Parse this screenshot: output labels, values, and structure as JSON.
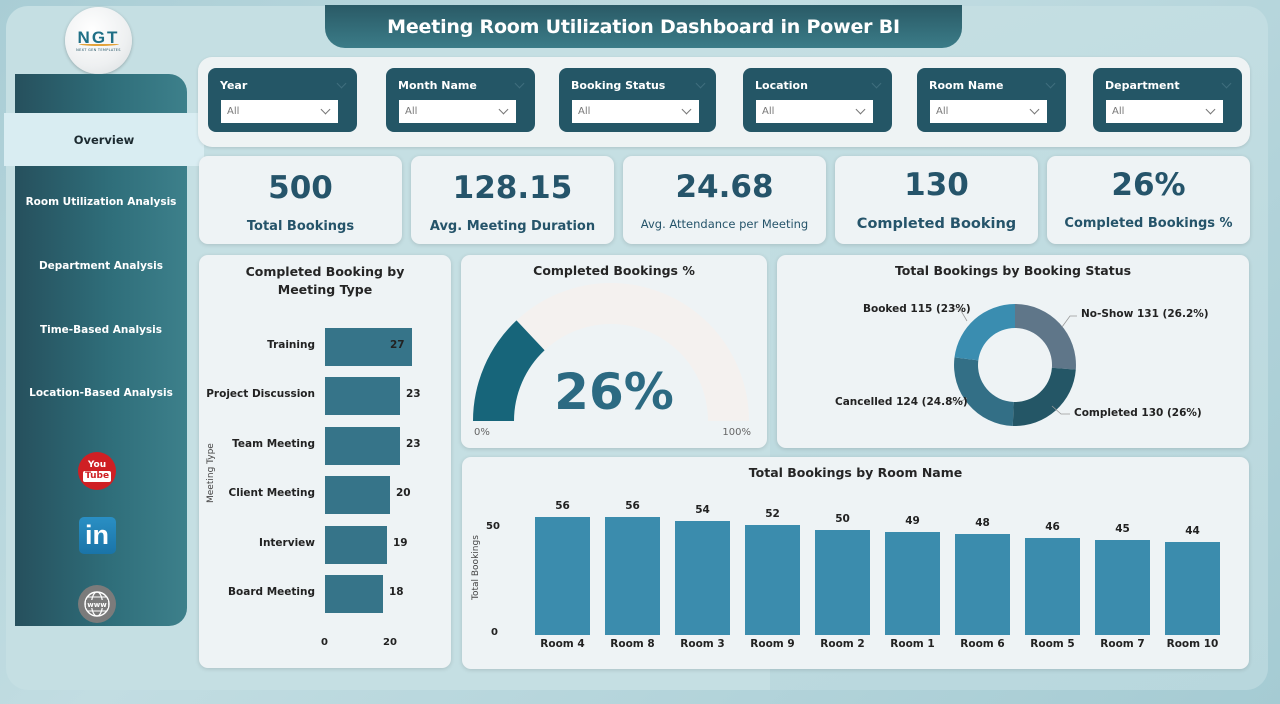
{
  "header": {
    "title": "Meeting Room Utilization Dashboard in Power BI"
  },
  "logo": {
    "text": "NGT",
    "subtext": "NEXT GEN TEMPLATES"
  },
  "sidebar": {
    "items": [
      {
        "label": "Overview",
        "active": true
      },
      {
        "label": "Room Utilization Analysis"
      },
      {
        "label": "Department Analysis"
      },
      {
        "label": "Time-Based Analysis"
      },
      {
        "label": "Location-Based Analysis"
      }
    ],
    "social": [
      {
        "icon": "youtube-icon",
        "line1": "You",
        "line2": "Tube"
      },
      {
        "icon": "linkedin-icon",
        "text": "in"
      },
      {
        "icon": "www-globe-icon",
        "text": "www"
      }
    ]
  },
  "filters": [
    {
      "label": "Year",
      "value": "All"
    },
    {
      "label": "Month Name",
      "value": "All"
    },
    {
      "label": "Booking Status",
      "value": "All"
    },
    {
      "label": "Location",
      "value": "All"
    },
    {
      "label": "Room Name",
      "value": "All"
    },
    {
      "label": "Department",
      "value": "All"
    }
  ],
  "kpis": [
    {
      "value": "500",
      "label": "Total Bookings"
    },
    {
      "value": "128.15",
      "label": "Avg. Meeting Duration"
    },
    {
      "value": "24.68",
      "label": "Avg. Attendance per Meeting"
    },
    {
      "value": "130",
      "label": "Completed Booking"
    },
    {
      "value": "26%",
      "label": "Completed Bookings %"
    }
  ],
  "colors": {
    "primary": "#245666",
    "bar_meeting_type": "#367489",
    "bar_room": "#3b8cad",
    "gauge_fill": "#17657a",
    "donut_booked": "#3a8db0",
    "donut_noshow": "#5f7689",
    "donut_completed": "#245666",
    "donut_cancelled": "#336f86"
  },
  "chart_data": [
    {
      "type": "bar",
      "orientation": "horizontal",
      "title": "Completed Booking by Meeting Type",
      "xlabel": "",
      "ylabel": "Meeting Type",
      "categories": [
        "Training",
        "Project Discussion",
        "Team Meeting",
        "Client Meeting",
        "Interview",
        "Board Meeting"
      ],
      "values": [
        27,
        23,
        23,
        20,
        19,
        18
      ],
      "x_ticks": [
        "0",
        "20"
      ],
      "xlim": [
        0,
        30
      ]
    },
    {
      "type": "gauge",
      "title": "Completed Bookings %",
      "value": 26,
      "display": "26%",
      "min_label": "0%",
      "max_label": "100%",
      "range": [
        0,
        100
      ]
    },
    {
      "type": "pie",
      "variant": "donut",
      "title": "Total Bookings by Booking Status",
      "categories": [
        "No-Show",
        "Completed",
        "Cancelled",
        "Booked"
      ],
      "values": [
        131,
        130,
        124,
        115
      ],
      "percents": [
        26.2,
        26,
        24.8,
        23
      ],
      "labels": [
        "No-Show 131 (26.2%)",
        "Completed 130 (26%)",
        "Cancelled 124 (24.8%)",
        "Booked 115 (23%)"
      ]
    },
    {
      "type": "bar",
      "orientation": "vertical",
      "title": "Total Bookings by Room Name",
      "xlabel": "",
      "ylabel": "Total Bookings",
      "categories": [
        "Room 4",
        "Room 8",
        "Room 3",
        "Room 9",
        "Room 2",
        "Room 1",
        "Room 6",
        "Room 5",
        "Room 7",
        "Room 10"
      ],
      "values": [
        56,
        56,
        54,
        52,
        50,
        49,
        48,
        46,
        45,
        44
      ],
      "y_ticks": [
        "0",
        "50"
      ],
      "ylim": [
        0,
        60
      ]
    }
  ]
}
